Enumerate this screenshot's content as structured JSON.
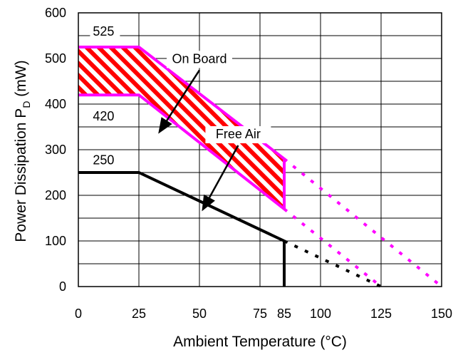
{
  "chart_data": {
    "type": "line",
    "xlabel": "Ambient Temperature (°C)",
    "ylabel_main": "Power Dissipation P",
    "ylabel_sub": "D",
    "ylabel_unit": " (mW)",
    "xlim": [
      0,
      150
    ],
    "ylim": [
      0,
      600
    ],
    "x_ticks": [
      {
        "value": 0,
        "label": "0"
      },
      {
        "value": 25,
        "label": "25"
      },
      {
        "value": 50,
        "label": "50"
      },
      {
        "value": 75,
        "label": "75"
      },
      {
        "value": 85,
        "label": "85"
      },
      {
        "value": 100,
        "label": "100"
      },
      {
        "value": 125,
        "label": "125"
      },
      {
        "value": 150,
        "label": "150"
      }
    ],
    "y_ticks": [
      {
        "value": 0,
        "label": "0"
      },
      {
        "value": 100,
        "label": "100"
      },
      {
        "value": 200,
        "label": "200"
      },
      {
        "value": 300,
        "label": "300"
      },
      {
        "value": 400,
        "label": "400"
      },
      {
        "value": 500,
        "label": "500"
      },
      {
        "value": 600,
        "label": "600"
      }
    ],
    "grid": true,
    "series": [
      {
        "name": "On Board",
        "style": "upper bound",
        "color": "#ff00ff",
        "x": [
          0,
          25,
          85
        ],
        "y": [
          525,
          525,
          280
        ]
      },
      {
        "name": "On Board",
        "style": "lower bound",
        "color": "#ff00ff",
        "x": [
          0,
          25,
          85
        ],
        "y": [
          420,
          420,
          170
        ]
      },
      {
        "name": "On Board",
        "style": "upper derating (dotted)",
        "color": "#ff00ff",
        "x": [
          85,
          150
        ],
        "y": [
          280,
          0
        ]
      },
      {
        "name": "On Board",
        "style": "lower derating (dotted)",
        "color": "#ff00ff",
        "x": [
          85,
          125
        ],
        "y": [
          170,
          0
        ]
      },
      {
        "name": "Free Air",
        "style": "solid",
        "color": "#000000",
        "x": [
          0,
          25,
          85
        ],
        "y": [
          250,
          250,
          100
        ]
      },
      {
        "name": "Free Air",
        "style": "derating (dotted)",
        "color": "#000000",
        "x": [
          85,
          125
        ],
        "y": [
          100,
          0
        ]
      }
    ],
    "on_board_band_fill": "#ff0000",
    "annotations": [
      {
        "text": "525",
        "x": 6,
        "y": 550
      },
      {
        "text": "420",
        "x": 6,
        "y": 364
      },
      {
        "text": "250",
        "x": 6,
        "y": 268
      },
      {
        "text": "On Board",
        "x": 50,
        "y": 490,
        "arrow_to": [
          33,
          335
        ]
      },
      {
        "text": "Free Air",
        "x": 66,
        "y": 325,
        "arrow_to": [
          51,
          165
        ]
      }
    ]
  }
}
